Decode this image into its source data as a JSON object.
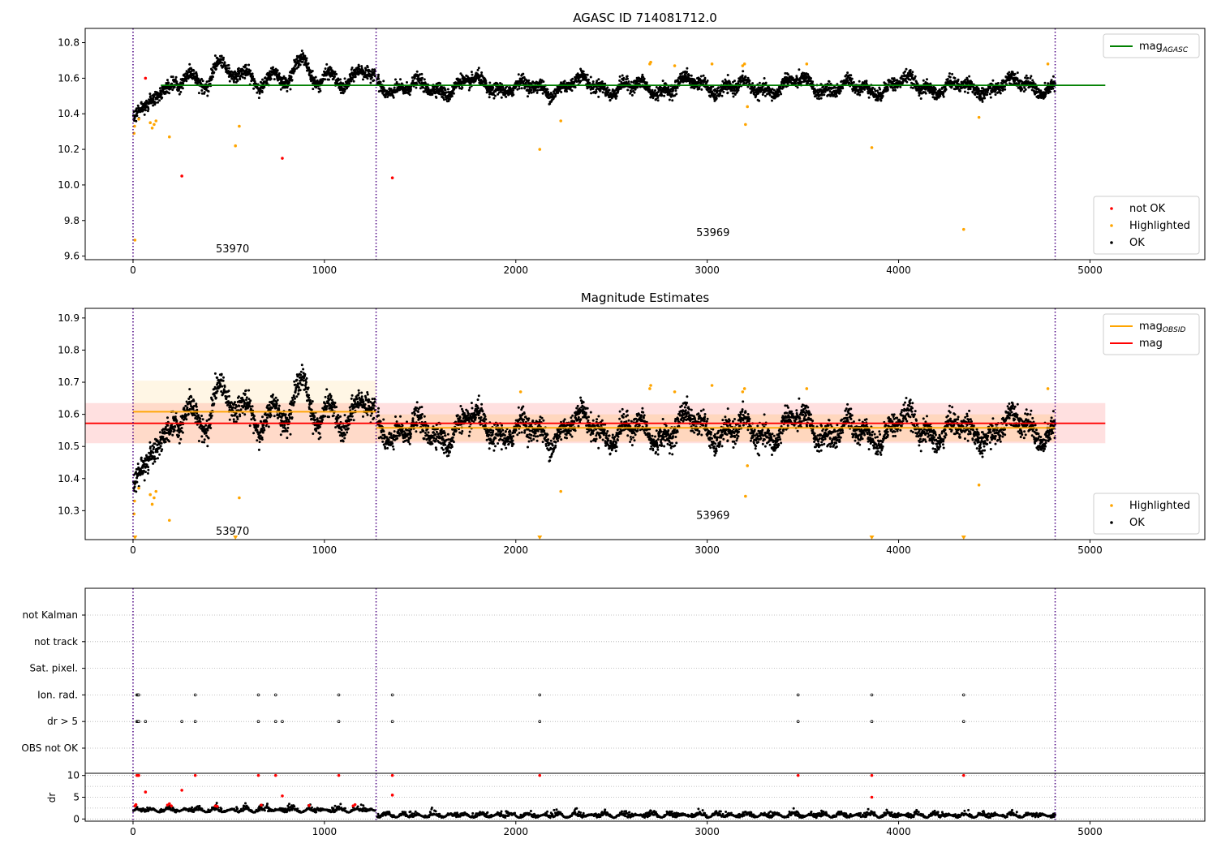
{
  "chart_data": [
    {
      "type": "scatter",
      "title": "AGASC ID 714081712.0",
      "xlim": [
        -250,
        5600
      ],
      "ylim": [
        9.58,
        10.88
      ],
      "xticks": [
        0,
        1000,
        2000,
        3000,
        4000,
        5000
      ],
      "yticks": [
        9.6,
        9.8,
        10.0,
        10.2,
        10.4,
        10.6,
        10.8
      ],
      "ytick_labels": [
        "9.6",
        "9.8",
        "10.0",
        "10.2",
        "10.4",
        "10.6",
        "10.8"
      ],
      "obs_boundaries": [
        0,
        1270,
        4818
      ],
      "annotations": [
        {
          "text": "53970",
          "x": 520,
          "y": 9.64
        },
        {
          "text": "53969",
          "x": 3030,
          "y": 9.73
        }
      ],
      "hlines": [
        {
          "name": "mag",
          "sub": "AGASC",
          "y": 10.56,
          "x0": 145,
          "x1": 5080,
          "color": "#008000"
        }
      ],
      "legends": [
        {
          "position": "upper-right",
          "entries": [
            {
              "label": "mag",
              "sub": "AGASC",
              "kind": "line",
              "color": "#008000"
            }
          ]
        },
        {
          "position": "lower-right",
          "entries": [
            {
              "label": "not OK",
              "kind": "marker",
              "color": "#ff0000"
            },
            {
              "label": "Highlighted",
              "kind": "marker",
              "color": "#ffa500"
            },
            {
              "label": "OK",
              "kind": "marker",
              "color": "#000000"
            }
          ]
        }
      ],
      "series": [
        {
          "name": "not OK",
          "color": "#ff0000",
          "points": [
            [
              65,
              10.6
            ],
            [
              255,
              10.05
            ],
            [
              780,
              10.15
            ],
            [
              1355,
              10.04
            ]
          ]
        },
        {
          "name": "Highlighted",
          "color": "#ffa500",
          "points": [
            [
              10,
              9.69
            ],
            [
              5,
              10.29
            ],
            [
              8,
              10.33
            ],
            [
              30,
              10.37
            ],
            [
              90,
              10.35
            ],
            [
              100,
              10.32
            ],
            [
              110,
              10.34
            ],
            [
              120,
              10.36
            ],
            [
              190,
              10.27
            ],
            [
              535,
              10.22
            ],
            [
              555,
              10.33
            ],
            [
              2125,
              10.2
            ],
            [
              2235,
              10.36
            ],
            [
              2700,
              10.68
            ],
            [
              2705,
              10.69
            ],
            [
              2830,
              10.67
            ],
            [
              3025,
              10.68
            ],
            [
              3185,
              10.67
            ],
            [
              3195,
              10.68
            ],
            [
              3200,
              10.34
            ],
            [
              3210,
              10.44
            ],
            [
              3520,
              10.68
            ],
            [
              3860,
              10.21
            ],
            [
              4340,
              9.75
            ],
            [
              4420,
              10.38
            ],
            [
              4780,
              10.68
            ]
          ]
        }
      ]
    },
    {
      "type": "scatter",
      "title": "Magnitude Estimates",
      "xlim": [
        -250,
        5600
      ],
      "ylim": [
        10.21,
        10.93
      ],
      "xticks": [
        0,
        1000,
        2000,
        3000,
        4000,
        5000
      ],
      "yticks": [
        10.3,
        10.4,
        10.5,
        10.6,
        10.7,
        10.8,
        10.9
      ],
      "ytick_labels": [
        "10.3",
        "10.4",
        "10.5",
        "10.6",
        "10.7",
        "10.8",
        "10.9"
      ],
      "obs_boundaries": [
        0,
        1270,
        4818
      ],
      "annotations": [
        {
          "text": "53970",
          "x": 520,
          "y": 10.235
        },
        {
          "text": "53969",
          "x": 3030,
          "y": 10.285
        }
      ],
      "bands": [
        {
          "x0": -250,
          "x1": 5080,
          "y0": 10.51,
          "y1": 10.635,
          "color": "#ff0000",
          "opacity": 0.12
        },
        {
          "x0": 0,
          "x1": 1270,
          "y0": 10.51,
          "y1": 10.705,
          "color": "#ffa500",
          "opacity": 0.1
        },
        {
          "x0": 1270,
          "x1": 4818,
          "y0": 10.515,
          "y1": 10.6,
          "color": "#ffa500",
          "opacity": 0.15
        }
      ],
      "hlines": [
        {
          "name": "mag",
          "sub": "OBSID",
          "y": 10.608,
          "x0": 0,
          "x1": 1270,
          "color": "#ffa500"
        },
        {
          "name": "mag",
          "sub": "OBSID",
          "y": 10.558,
          "x0": 1270,
          "x1": 4818,
          "color": "#ffa500"
        },
        {
          "name": "mag",
          "y": 10.572,
          "x0": -250,
          "x1": 5080,
          "color": "#ff0000"
        }
      ],
      "legends": [
        {
          "position": "upper-right",
          "entries": [
            {
              "label": "mag",
              "sub": "OBSID",
              "kind": "line",
              "color": "#ffa500"
            },
            {
              "label": "mag",
              "kind": "line",
              "color": "#ff0000"
            }
          ]
        },
        {
          "position": "lower-right",
          "entries": [
            {
              "label": "Highlighted",
              "kind": "marker",
              "color": "#ffa500"
            },
            {
              "label": "OK",
              "kind": "marker",
              "color": "#000000"
            }
          ]
        }
      ],
      "series": [
        {
          "name": "Highlighted",
          "color": "#ffa500",
          "points": [
            [
              5,
              10.29
            ],
            [
              8,
              10.33
            ],
            [
              30,
              10.37
            ],
            [
              90,
              10.35
            ],
            [
              100,
              10.32
            ],
            [
              110,
              10.34
            ],
            [
              120,
              10.36
            ],
            [
              190,
              10.27
            ],
            [
              555,
              10.34
            ],
            [
              2025,
              10.67
            ],
            [
              2235,
              10.36
            ],
            [
              2700,
              10.68
            ],
            [
              2705,
              10.69
            ],
            [
              2830,
              10.67
            ],
            [
              3025,
              10.69
            ],
            [
              3185,
              10.67
            ],
            [
              3195,
              10.68
            ],
            [
              3200,
              10.345
            ],
            [
              3210,
              10.44
            ],
            [
              3520,
              10.68
            ],
            [
              4420,
              10.38
            ],
            [
              4780,
              10.68
            ]
          ]
        },
        {
          "name": "Highlighted (clipped)",
          "color": "#ffa500",
          "marker": "triangle-down",
          "points": [
            [
              10,
              10.215
            ],
            [
              535,
              10.215
            ],
            [
              2125,
              10.215
            ],
            [
              3860,
              10.215
            ],
            [
              4340,
              10.215
            ]
          ]
        }
      ]
    },
    {
      "type": "scatter",
      "xlim": [
        -250,
        5600
      ],
      "xticks": [
        0,
        1000,
        2000,
        3000,
        4000,
        5000
      ],
      "obs_boundaries": [
        0,
        1270,
        4818
      ],
      "flag_categories": [
        "not Kalman",
        "not track",
        "Sat. pixel.",
        "Ion. rad.",
        "dr > 5",
        "OBS not OK"
      ],
      "flags": {
        "Ion. rad.": [
          20,
          25,
          30,
          325,
          655,
          745,
          1075,
          1355,
          2125,
          3475,
          3860,
          4340
        ],
        "dr > 5": [
          20,
          25,
          30,
          65,
          255,
          325,
          655,
          745,
          780,
          1075,
          1355,
          2125,
          3475,
          3860,
          4340
        ]
      }
    },
    {
      "type": "scatter",
      "ylabel": "dr",
      "xlim": [
        -250,
        5600
      ],
      "ylim": [
        -0.5,
        10.5
      ],
      "xticks": [
        0,
        1000,
        2000,
        3000,
        4000,
        5000
      ],
      "yticks": [
        0,
        5,
        10
      ],
      "ytick_labels": [
        "0",
        "5",
        "10"
      ],
      "obs_boundaries": [
        0,
        1270,
        4818
      ],
      "series": [
        {
          "name": "not OK",
          "color": "#ff0000",
          "points": [
            [
              20,
              10
            ],
            [
              25,
              10
            ],
            [
              30,
              10
            ],
            [
              65,
              6.2
            ],
            [
              255,
              6.6
            ],
            [
              325,
              10
            ],
            [
              655,
              10
            ],
            [
              745,
              10
            ],
            [
              780,
              5.3
            ],
            [
              1075,
              10
            ],
            [
              1355,
              10
            ],
            [
              1355,
              5.5
            ],
            [
              2125,
              10
            ],
            [
              3475,
              10
            ],
            [
              3860,
              10
            ],
            [
              3860,
              5
            ],
            [
              4340,
              10
            ]
          ]
        }
      ]
    }
  ]
}
